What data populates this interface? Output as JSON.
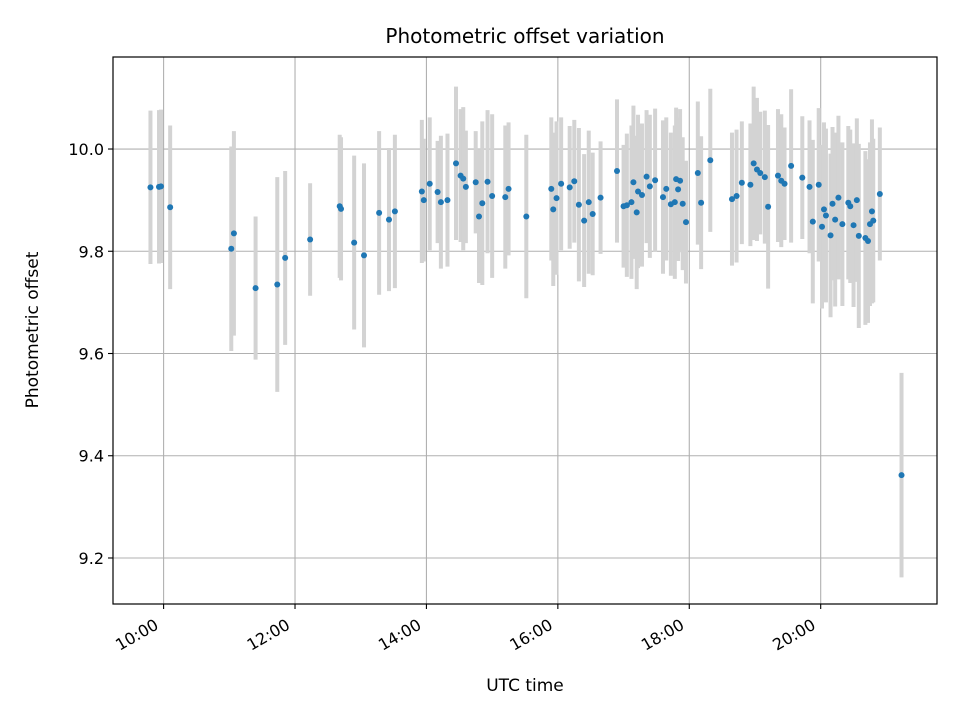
{
  "chart_data": {
    "type": "scatter",
    "title": "Photometric offset variation",
    "xlabel": "UTC time",
    "ylabel": "Photometric offset",
    "xlim_hours": [
      9.23,
      21.77
    ],
    "ylim": [
      9.11,
      10.18
    ],
    "grid": true,
    "x_ticks": [
      {
        "value": 10,
        "label": "10:00"
      },
      {
        "value": 12,
        "label": "12:00"
      },
      {
        "value": 14,
        "label": "14:00"
      },
      {
        "value": 16,
        "label": "16:00"
      },
      {
        "value": 18,
        "label": "18:00"
      },
      {
        "value": 20,
        "label": "20:00"
      }
    ],
    "y_ticks": [
      {
        "value": 9.2,
        "label": "9.2"
      },
      {
        "value": 9.4,
        "label": "9.4"
      },
      {
        "value": 9.6,
        "label": "9.6"
      },
      {
        "value": 9.8,
        "label": "9.8"
      },
      {
        "value": 10.0,
        "label": "10.0"
      }
    ],
    "colors": {
      "point": "#1f77b4",
      "errorbar": "#d3d3d3",
      "grid": "#b0b0b0",
      "axis": "#000000"
    },
    "series": [
      {
        "name": "offset",
        "points": [
          [
            9.8,
            9.925,
            0.15
          ],
          [
            9.93,
            9.926,
            0.15
          ],
          [
            9.96,
            9.927,
            0.15
          ],
          [
            10.1,
            9.886,
            0.16
          ],
          [
            11.03,
            9.805,
            0.2
          ],
          [
            11.07,
            9.835,
            0.2
          ],
          [
            11.4,
            9.728,
            0.14
          ],
          [
            11.73,
            9.735,
            0.21
          ],
          [
            11.85,
            9.787,
            0.17
          ],
          [
            12.23,
            9.823,
            0.11
          ],
          [
            12.68,
            9.888,
            0.14
          ],
          [
            12.7,
            9.883,
            0.14
          ],
          [
            12.9,
            9.817,
            0.17
          ],
          [
            13.05,
            9.792,
            0.18
          ],
          [
            13.28,
            9.875,
            0.16
          ],
          [
            13.43,
            9.862,
            0.14
          ],
          [
            13.52,
            9.878,
            0.15
          ],
          [
            13.93,
            9.917,
            0.14
          ],
          [
            13.96,
            9.9,
            0.12
          ],
          [
            14.05,
            9.932,
            0.13
          ],
          [
            14.17,
            9.916,
            0.1
          ],
          [
            14.22,
            9.896,
            0.13
          ],
          [
            14.32,
            9.9,
            0.13
          ],
          [
            14.45,
            9.972,
            0.15
          ],
          [
            14.52,
            9.948,
            0.13
          ],
          [
            14.56,
            9.942,
            0.14
          ],
          [
            14.6,
            9.926,
            0.11
          ],
          [
            14.75,
            9.935,
            0.1
          ],
          [
            14.8,
            9.868,
            0.13
          ],
          [
            14.85,
            9.894,
            0.16
          ],
          [
            14.93,
            9.936,
            0.14
          ],
          [
            15.0,
            9.908,
            0.16
          ],
          [
            15.2,
            9.906,
            0.14
          ],
          [
            15.25,
            9.922,
            0.13
          ],
          [
            15.52,
            9.868,
            0.16
          ],
          [
            15.9,
            9.922,
            0.14
          ],
          [
            15.93,
            9.882,
            0.15
          ],
          [
            15.98,
            9.904,
            0.15
          ],
          [
            16.05,
            9.932,
            0.13
          ],
          [
            16.18,
            9.925,
            0.12
          ],
          [
            16.25,
            9.937,
            0.12
          ],
          [
            16.32,
            9.891,
            0.15
          ],
          [
            16.4,
            9.86,
            0.13
          ],
          [
            16.47,
            9.896,
            0.14
          ],
          [
            16.53,
            9.873,
            0.12
          ],
          [
            16.65,
            9.905,
            0.11
          ],
          [
            16.9,
            9.957,
            0.14
          ],
          [
            17.0,
            9.888,
            0.12
          ],
          [
            17.05,
            9.89,
            0.14
          ],
          [
            17.12,
            9.896,
            0.15
          ],
          [
            17.15,
            9.935,
            0.15
          ],
          [
            17.2,
            9.876,
            0.15
          ],
          [
            17.22,
            9.917,
            0.15
          ],
          [
            17.28,
            9.91,
            0.14
          ],
          [
            17.35,
            9.946,
            0.13
          ],
          [
            17.4,
            9.927,
            0.14
          ],
          [
            17.48,
            9.939,
            0.14
          ],
          [
            17.6,
            9.906,
            0.15
          ],
          [
            17.65,
            9.922,
            0.14
          ],
          [
            17.72,
            9.892,
            0.14
          ],
          [
            17.78,
            9.896,
            0.15
          ],
          [
            17.8,
            9.941,
            0.14
          ],
          [
            17.83,
            9.921,
            0.14
          ],
          [
            17.86,
            9.938,
            0.14
          ],
          [
            17.9,
            9.893,
            0.13
          ],
          [
            17.95,
            9.857,
            0.12
          ],
          [
            18.13,
            9.953,
            0.14
          ],
          [
            18.18,
            9.895,
            0.13
          ],
          [
            18.32,
            9.978,
            0.14
          ],
          [
            18.65,
            9.902,
            0.13
          ],
          [
            18.72,
            9.908,
            0.13
          ],
          [
            18.8,
            9.934,
            0.12
          ],
          [
            18.93,
            9.93,
            0.12
          ],
          [
            18.98,
            9.972,
            0.15
          ],
          [
            19.03,
            9.96,
            0.14
          ],
          [
            19.08,
            9.953,
            0.12
          ],
          [
            19.15,
            9.945,
            0.13
          ],
          [
            19.2,
            9.887,
            0.16
          ],
          [
            19.35,
            9.948,
            0.13
          ],
          [
            19.4,
            9.938,
            0.13
          ],
          [
            19.45,
            9.932,
            0.11
          ],
          [
            19.55,
            9.967,
            0.15
          ],
          [
            19.72,
            9.944,
            0.12
          ],
          [
            19.83,
            9.926,
            0.13
          ],
          [
            19.88,
            9.858,
            0.16
          ],
          [
            19.97,
            9.93,
            0.15
          ],
          [
            20.02,
            9.848,
            0.16
          ],
          [
            20.05,
            9.882,
            0.17
          ],
          [
            20.08,
            9.87,
            0.17
          ],
          [
            20.15,
            9.831,
            0.16
          ],
          [
            20.18,
            9.893,
            0.15
          ],
          [
            20.22,
            9.862,
            0.17
          ],
          [
            20.27,
            9.905,
            0.16
          ],
          [
            20.33,
            9.853,
            0.16
          ],
          [
            20.42,
            9.895,
            0.15
          ],
          [
            20.45,
            9.888,
            0.15
          ],
          [
            20.5,
            9.851,
            0.16
          ],
          [
            20.55,
            9.9,
            0.16
          ],
          [
            20.58,
            9.83,
            0.18
          ],
          [
            20.68,
            9.826,
            0.17
          ],
          [
            20.72,
            9.82,
            0.16
          ],
          [
            20.75,
            9.853,
            0.16
          ],
          [
            20.78,
            9.878,
            0.18
          ],
          [
            20.8,
            9.86,
            0.16
          ],
          [
            20.9,
            9.912,
            0.13
          ],
          [
            21.23,
            9.362,
            0.2
          ]
        ]
      }
    ]
  }
}
